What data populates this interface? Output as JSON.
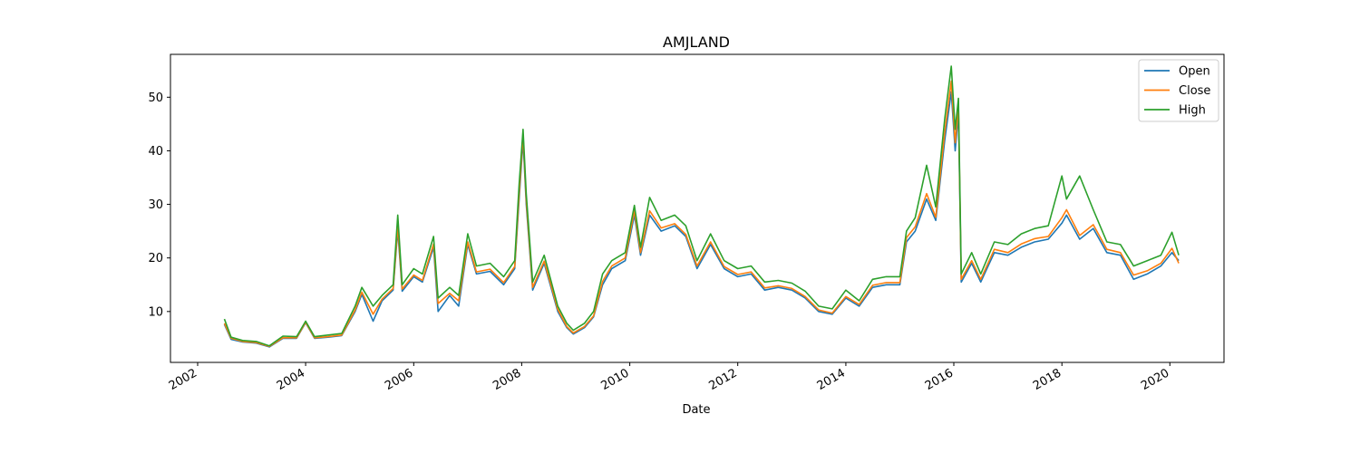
{
  "chart_data": {
    "type": "line",
    "title": "AMJLAND",
    "xlabel": "Date",
    "ylabel": "",
    "xlim": [
      "2001-07-01",
      "2021-01-01"
    ],
    "ylim": [
      0.5,
      58
    ],
    "x_ticks": [
      "2002",
      "2004",
      "2006",
      "2008",
      "2010",
      "2012",
      "2014",
      "2016",
      "2018",
      "2020"
    ],
    "y_ticks": [
      10,
      20,
      30,
      40,
      50
    ],
    "grid": false,
    "legend": "top-right",
    "series": [
      {
        "name": "Open",
        "color": "#1f77b4",
        "points": [
          [
            "2002-07-01",
            7.6
          ],
          [
            "2002-08-15",
            4.8
          ],
          [
            "2002-11-01",
            4.3
          ],
          [
            "2003-02-01",
            4.1
          ],
          [
            "2003-05-01",
            3.4
          ],
          [
            "2003-08-01",
            5.0
          ],
          [
            "2003-11-01",
            5.0
          ],
          [
            "2004-01-01",
            7.9
          ],
          [
            "2004-03-01",
            5.0
          ],
          [
            "2004-06-01",
            5.2
          ],
          [
            "2004-09-01",
            5.5
          ],
          [
            "2004-12-01",
            10.0
          ],
          [
            "2005-01-15",
            13.2
          ],
          [
            "2005-04-01",
            8.2
          ],
          [
            "2005-06-01",
            12.0
          ],
          [
            "2005-08-15",
            14.0
          ],
          [
            "2005-09-15",
            25.2
          ],
          [
            "2005-10-15",
            13.8
          ],
          [
            "2006-01-01",
            16.5
          ],
          [
            "2006-03-01",
            15.5
          ],
          [
            "2006-05-15",
            22.0
          ],
          [
            "2006-06-15",
            10.0
          ],
          [
            "2006-09-01",
            13.0
          ],
          [
            "2006-11-01",
            11.0
          ],
          [
            "2007-01-01",
            22.5
          ],
          [
            "2007-03-01",
            17.0
          ],
          [
            "2007-06-01",
            17.5
          ],
          [
            "2007-09-01",
            15.0
          ],
          [
            "2007-11-15",
            18.0
          ],
          [
            "2007-12-15",
            31.0
          ],
          [
            "2008-01-10",
            42.0
          ],
          [
            "2008-02-01",
            30.0
          ],
          [
            "2008-03-15",
            14.0
          ],
          [
            "2008-06-01",
            19.0
          ],
          [
            "2008-09-01",
            10.0
          ],
          [
            "2008-11-01",
            7.0
          ],
          [
            "2008-12-15",
            5.8
          ],
          [
            "2009-03-01",
            7.0
          ],
          [
            "2009-05-01",
            9.0
          ],
          [
            "2009-07-01",
            15.0
          ],
          [
            "2009-09-01",
            18.0
          ],
          [
            "2009-12-01",
            19.5
          ],
          [
            "2010-02-01",
            28.0
          ],
          [
            "2010-03-15",
            20.5
          ],
          [
            "2010-05-15",
            28.0
          ],
          [
            "2010-08-01",
            25.0
          ],
          [
            "2010-11-01",
            26.0
          ],
          [
            "2011-01-15",
            24.0
          ],
          [
            "2011-04-01",
            18.0
          ],
          [
            "2011-07-01",
            22.5
          ],
          [
            "2011-10-01",
            18.0
          ],
          [
            "2012-01-01",
            16.5
          ],
          [
            "2012-04-01",
            17.0
          ],
          [
            "2012-07-01",
            14.0
          ],
          [
            "2012-10-01",
            14.5
          ],
          [
            "2013-01-01",
            14.0
          ],
          [
            "2013-04-01",
            12.5
          ],
          [
            "2013-07-01",
            10.0
          ],
          [
            "2013-10-01",
            9.5
          ],
          [
            "2014-01-01",
            12.5
          ],
          [
            "2014-04-01",
            11.0
          ],
          [
            "2014-07-01",
            14.5
          ],
          [
            "2014-10-01",
            15.0
          ],
          [
            "2015-01-01",
            15.0
          ],
          [
            "2015-02-15",
            23.0
          ],
          [
            "2015-04-15",
            25.0
          ],
          [
            "2015-07-01",
            31.0
          ],
          [
            "2015-09-01",
            27.0
          ],
          [
            "2015-11-01",
            42.0
          ],
          [
            "2015-12-15",
            51.0
          ],
          [
            "2016-01-10",
            40.0
          ],
          [
            "2016-02-01",
            47.0
          ],
          [
            "2016-02-20",
            15.5
          ],
          [
            "2016-05-01",
            19.0
          ],
          [
            "2016-07-01",
            15.5
          ],
          [
            "2016-10-01",
            21.0
          ],
          [
            "2017-01-01",
            20.5
          ],
          [
            "2017-04-01",
            22.0
          ],
          [
            "2017-07-01",
            23.0
          ],
          [
            "2017-10-01",
            23.5
          ],
          [
            "2018-01-01",
            26.5
          ],
          [
            "2018-02-01",
            28.0
          ],
          [
            "2018-05-01",
            23.5
          ],
          [
            "2018-08-01",
            25.5
          ],
          [
            "2018-11-01",
            21.0
          ],
          [
            "2019-02-01",
            20.5
          ],
          [
            "2019-05-01",
            16.0
          ],
          [
            "2019-08-01",
            17.0
          ],
          [
            "2019-11-01",
            18.5
          ],
          [
            "2020-01-15",
            21.0
          ],
          [
            "2020-03-01",
            19.5
          ]
        ]
      },
      {
        "name": "Close",
        "color": "#ff7f0e",
        "points": [
          [
            "2002-07-01",
            7.8
          ],
          [
            "2002-08-15",
            5.0
          ],
          [
            "2002-11-01",
            4.4
          ],
          [
            "2003-02-01",
            4.2
          ],
          [
            "2003-05-01",
            3.5
          ],
          [
            "2003-08-01",
            5.1
          ],
          [
            "2003-11-01",
            5.1
          ],
          [
            "2004-01-01",
            8.0
          ],
          [
            "2004-03-01",
            5.1
          ],
          [
            "2004-06-01",
            5.3
          ],
          [
            "2004-09-01",
            5.6
          ],
          [
            "2004-12-01",
            10.3
          ],
          [
            "2005-01-15",
            13.6
          ],
          [
            "2005-04-01",
            9.5
          ],
          [
            "2005-06-01",
            12.3
          ],
          [
            "2005-08-15",
            14.3
          ],
          [
            "2005-09-15",
            26.0
          ],
          [
            "2005-10-15",
            14.2
          ],
          [
            "2006-01-01",
            16.8
          ],
          [
            "2006-03-01",
            15.8
          ],
          [
            "2006-05-15",
            22.6
          ],
          [
            "2006-06-15",
            11.5
          ],
          [
            "2006-09-01",
            13.4
          ],
          [
            "2006-11-01",
            12.0
          ],
          [
            "2007-01-01",
            23.0
          ],
          [
            "2007-03-01",
            17.4
          ],
          [
            "2007-06-01",
            17.9
          ],
          [
            "2007-09-01",
            15.4
          ],
          [
            "2007-11-15",
            18.4
          ],
          [
            "2007-12-15",
            32.0
          ],
          [
            "2008-01-10",
            43.0
          ],
          [
            "2008-02-01",
            30.8
          ],
          [
            "2008-03-15",
            14.5
          ],
          [
            "2008-06-01",
            19.4
          ],
          [
            "2008-09-01",
            10.4
          ],
          [
            "2008-11-01",
            7.2
          ],
          [
            "2008-12-15",
            6.0
          ],
          [
            "2009-03-01",
            7.2
          ],
          [
            "2009-05-01",
            9.2
          ],
          [
            "2009-07-01",
            15.6
          ],
          [
            "2009-09-01",
            18.5
          ],
          [
            "2009-12-01",
            20.0
          ],
          [
            "2010-02-01",
            28.8
          ],
          [
            "2010-03-15",
            21.0
          ],
          [
            "2010-05-15",
            28.8
          ],
          [
            "2010-08-01",
            25.6
          ],
          [
            "2010-11-01",
            26.4
          ],
          [
            "2011-01-15",
            24.4
          ],
          [
            "2011-04-01",
            18.5
          ],
          [
            "2011-07-01",
            23.0
          ],
          [
            "2011-10-01",
            18.4
          ],
          [
            "2012-01-01",
            16.9
          ],
          [
            "2012-04-01",
            17.4
          ],
          [
            "2012-07-01",
            14.4
          ],
          [
            "2012-10-01",
            14.8
          ],
          [
            "2013-01-01",
            14.3
          ],
          [
            "2013-04-01",
            12.8
          ],
          [
            "2013-07-01",
            10.3
          ],
          [
            "2013-10-01",
            9.7
          ],
          [
            "2014-01-01",
            12.8
          ],
          [
            "2014-04-01",
            11.3
          ],
          [
            "2014-07-01",
            14.9
          ],
          [
            "2014-10-01",
            15.4
          ],
          [
            "2015-01-01",
            15.4
          ],
          [
            "2015-02-15",
            23.8
          ],
          [
            "2015-04-15",
            25.8
          ],
          [
            "2015-07-01",
            32.0
          ],
          [
            "2015-09-01",
            27.6
          ],
          [
            "2015-11-01",
            43.5
          ],
          [
            "2015-12-15",
            53.0
          ],
          [
            "2016-01-10",
            41.5
          ],
          [
            "2016-02-01",
            48.5
          ],
          [
            "2016-02-20",
            16.0
          ],
          [
            "2016-05-01",
            19.5
          ],
          [
            "2016-07-01",
            16.0
          ],
          [
            "2016-10-01",
            21.6
          ],
          [
            "2017-01-01",
            21.0
          ],
          [
            "2017-04-01",
            22.6
          ],
          [
            "2017-07-01",
            23.6
          ],
          [
            "2017-10-01",
            24.0
          ],
          [
            "2018-01-01",
            27.5
          ],
          [
            "2018-02-01",
            29.0
          ],
          [
            "2018-05-01",
            24.2
          ],
          [
            "2018-08-01",
            26.2
          ],
          [
            "2018-11-01",
            21.6
          ],
          [
            "2019-02-01",
            21.0
          ],
          [
            "2019-05-01",
            16.8
          ],
          [
            "2019-08-01",
            17.6
          ],
          [
            "2019-11-01",
            19.0
          ],
          [
            "2020-01-15",
            21.8
          ],
          [
            "2020-03-01",
            19.0
          ]
        ]
      },
      {
        "name": "High",
        "color": "#2ca02c",
        "points": [
          [
            "2002-07-01",
            8.6
          ],
          [
            "2002-08-15",
            5.2
          ],
          [
            "2002-11-01",
            4.6
          ],
          [
            "2003-02-01",
            4.4
          ],
          [
            "2003-05-01",
            3.6
          ],
          [
            "2003-08-01",
            5.4
          ],
          [
            "2003-11-01",
            5.3
          ],
          [
            "2004-01-01",
            8.2
          ],
          [
            "2004-03-01",
            5.3
          ],
          [
            "2004-06-01",
            5.6
          ],
          [
            "2004-09-01",
            5.9
          ],
          [
            "2004-12-01",
            11.0
          ],
          [
            "2005-01-15",
            14.5
          ],
          [
            "2005-04-01",
            11.0
          ],
          [
            "2005-06-01",
            13.0
          ],
          [
            "2005-08-15",
            15.0
          ],
          [
            "2005-09-15",
            28.0
          ],
          [
            "2005-10-15",
            15.0
          ],
          [
            "2006-01-01",
            18.0
          ],
          [
            "2006-03-01",
            17.0
          ],
          [
            "2006-05-15",
            24.0
          ],
          [
            "2006-06-15",
            12.5
          ],
          [
            "2006-09-01",
            14.5
          ],
          [
            "2006-11-01",
            13.0
          ],
          [
            "2007-01-01",
            24.5
          ],
          [
            "2007-03-01",
            18.5
          ],
          [
            "2007-06-01",
            19.0
          ],
          [
            "2007-09-01",
            16.5
          ],
          [
            "2007-11-15",
            19.5
          ],
          [
            "2007-12-15",
            33.8
          ],
          [
            "2008-01-10",
            44.0
          ],
          [
            "2008-02-01",
            32.0
          ],
          [
            "2008-03-15",
            15.5
          ],
          [
            "2008-06-01",
            20.5
          ],
          [
            "2008-09-01",
            11.0
          ],
          [
            "2008-11-01",
            7.8
          ],
          [
            "2008-12-15",
            6.5
          ],
          [
            "2009-03-01",
            7.8
          ],
          [
            "2009-05-01",
            10.0
          ],
          [
            "2009-07-01",
            17.0
          ],
          [
            "2009-09-01",
            19.5
          ],
          [
            "2009-12-01",
            21.0
          ],
          [
            "2010-02-01",
            29.8
          ],
          [
            "2010-03-15",
            22.0
          ],
          [
            "2010-05-15",
            31.3
          ],
          [
            "2010-08-01",
            27.0
          ],
          [
            "2010-11-01",
            28.0
          ],
          [
            "2011-01-15",
            26.0
          ],
          [
            "2011-04-01",
            19.5
          ],
          [
            "2011-07-01",
            24.5
          ],
          [
            "2011-10-01",
            19.5
          ],
          [
            "2012-01-01",
            18.0
          ],
          [
            "2012-04-01",
            18.5
          ],
          [
            "2012-07-01",
            15.5
          ],
          [
            "2012-10-01",
            15.8
          ],
          [
            "2013-01-01",
            15.3
          ],
          [
            "2013-04-01",
            13.8
          ],
          [
            "2013-07-01",
            11.0
          ],
          [
            "2013-10-01",
            10.5
          ],
          [
            "2014-01-01",
            14.0
          ],
          [
            "2014-04-01",
            12.0
          ],
          [
            "2014-07-01",
            16.0
          ],
          [
            "2014-10-01",
            16.5
          ],
          [
            "2015-01-01",
            16.5
          ],
          [
            "2015-02-15",
            25.0
          ],
          [
            "2015-04-15",
            27.5
          ],
          [
            "2015-07-01",
            37.3
          ],
          [
            "2015-09-01",
            29.5
          ],
          [
            "2015-11-01",
            46.0
          ],
          [
            "2015-12-15",
            55.8
          ],
          [
            "2016-01-10",
            44.0
          ],
          [
            "2016-02-01",
            49.8
          ],
          [
            "2016-02-20",
            17.0
          ],
          [
            "2016-05-01",
            21.0
          ],
          [
            "2016-07-01",
            17.0
          ],
          [
            "2016-10-01",
            23.0
          ],
          [
            "2017-01-01",
            22.5
          ],
          [
            "2017-04-01",
            24.5
          ],
          [
            "2017-07-01",
            25.5
          ],
          [
            "2017-10-01",
            26.0
          ],
          [
            "2018-01-01",
            35.3
          ],
          [
            "2018-02-01",
            31.0
          ],
          [
            "2018-05-01",
            35.3
          ],
          [
            "2018-08-01",
            29.0
          ],
          [
            "2018-11-01",
            23.0
          ],
          [
            "2019-02-01",
            22.5
          ],
          [
            "2019-05-01",
            18.5
          ],
          [
            "2019-08-01",
            19.5
          ],
          [
            "2019-11-01",
            20.5
          ],
          [
            "2020-01-15",
            24.8
          ],
          [
            "2020-03-01",
            20.5
          ]
        ]
      }
    ]
  }
}
